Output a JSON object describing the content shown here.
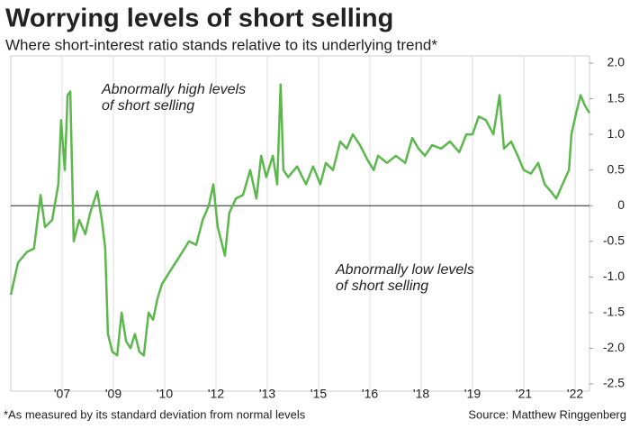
{
  "chart_data": {
    "type": "line",
    "title": "Worrying levels of short selling",
    "subtitle": "Where short-interest ratio stands relative to its underlying trend*",
    "footnote": "*As measured by its standard deviation from normal levels",
    "source": "Source: Matthew Ringgenberg",
    "annotations": [
      {
        "lines": [
          "Abnormally high levels",
          "of short selling"
        ],
        "color": "#e0442c"
      },
      {
        "lines": [
          "Abnormally low levels",
          "of short selling"
        ],
        "color": "#e0442c"
      }
    ],
    "x": [
      2006.0,
      2006.21,
      2006.47,
      2006.68,
      2006.87,
      2007.0,
      2007.21,
      2007.39,
      2007.47,
      2007.58,
      2007.66,
      2007.74,
      2007.84,
      2008.0,
      2008.18,
      2008.32,
      2008.53,
      2008.66,
      2008.76,
      2008.84,
      2008.97,
      2009.11,
      2009.24,
      2009.37,
      2009.5,
      2009.63,
      2009.76,
      2009.89,
      2010.03,
      2010.16,
      2010.29,
      2010.42,
      2010.68,
      2010.95,
      2011.21,
      2011.42,
      2011.61,
      2011.79,
      2011.92,
      2012.05,
      2012.26,
      2012.39,
      2012.58,
      2012.79,
      2013.0,
      2013.18,
      2013.32,
      2013.47,
      2013.66,
      2013.79,
      2013.89,
      2013.97,
      2014.11,
      2014.37,
      2014.63,
      2014.84,
      2015.05,
      2015.21,
      2015.42,
      2015.63,
      2015.82,
      2016.0,
      2016.21,
      2016.42,
      2016.61,
      2016.74,
      2017.0,
      2017.26,
      2017.53,
      2017.74,
      2017.92,
      2018.11,
      2018.32,
      2018.58,
      2018.84,
      2019.11,
      2019.32,
      2019.5,
      2019.68,
      2019.89,
      2020.11,
      2020.29,
      2020.42,
      2020.63,
      2020.82,
      2021.0,
      2021.21,
      2021.42,
      2021.61,
      2021.79,
      2021.95,
      2022.13,
      2022.32,
      2022.39,
      2022.53,
      2022.66,
      2022.79,
      2022.92
    ],
    "series": [
      {
        "name": "Short-interest ratio",
        "color": "#5cb84c",
        "values": [
          -1.25,
          -0.8,
          -0.65,
          -0.6,
          0.15,
          -0.3,
          -0.2,
          0.3,
          1.2,
          0.5,
          1.55,
          1.6,
          -0.5,
          -0.2,
          -0.4,
          -0.1,
          0.2,
          -0.2,
          -0.6,
          -1.8,
          -2.05,
          -2.1,
          -1.5,
          -1.9,
          -2.0,
          -1.8,
          -2.05,
          -2.1,
          -1.5,
          -1.6,
          -1.3,
          -1.1,
          -0.9,
          -0.7,
          -0.5,
          -0.55,
          -0.2,
          0.0,
          0.3,
          -0.3,
          -0.7,
          -0.1,
          0.1,
          0.15,
          0.5,
          0.1,
          0.7,
          0.4,
          0.7,
          0.3,
          1.7,
          0.5,
          0.4,
          0.55,
          0.3,
          0.55,
          0.3,
          0.6,
          0.5,
          0.9,
          0.8,
          1.0,
          0.85,
          0.65,
          0.5,
          0.7,
          0.6,
          0.7,
          0.6,
          0.95,
          0.8,
          0.7,
          0.85,
          0.8,
          0.9,
          0.75,
          1.0,
          1.0,
          1.25,
          1.2,
          1.0,
          1.55,
          0.8,
          0.9,
          0.7,
          0.5,
          0.45,
          0.6,
          0.3,
          0.2,
          0.1,
          0.3,
          0.5,
          1.0,
          1.3,
          1.55,
          1.4,
          1.3
        ]
      }
    ],
    "xlim": [
      2006,
      2022.92
    ],
    "xticks": [
      {
        "value": 2007.5,
        "label": "'07"
      },
      {
        "value": 2009,
        "label": "'09"
      },
      {
        "value": 2010.5,
        "label": "'10"
      },
      {
        "value": 2012,
        "label": "'12"
      },
      {
        "value": 2013.5,
        "label": "'13"
      },
      {
        "value": 2015,
        "label": "'15"
      },
      {
        "value": 2016.5,
        "label": "'16"
      },
      {
        "value": 2018,
        "label": "'18"
      },
      {
        "value": 2019.5,
        "label": "'19"
      },
      {
        "value": 2021,
        "label": "'21"
      },
      {
        "value": 2022.5,
        "label": "'22"
      }
    ],
    "ylim": [
      -2.5,
      2
    ],
    "yticks": [
      {
        "value": 2,
        "label": "2.0"
      },
      1.5,
      {
        "value": 1,
        "label": "1.0"
      },
      0.5,
      0,
      -0.5,
      {
        "value": -1,
        "label": "-1.0"
      },
      -1.5,
      {
        "value": -2,
        "label": "-2.0"
      },
      -2.5
    ],
    "grid": true
  }
}
